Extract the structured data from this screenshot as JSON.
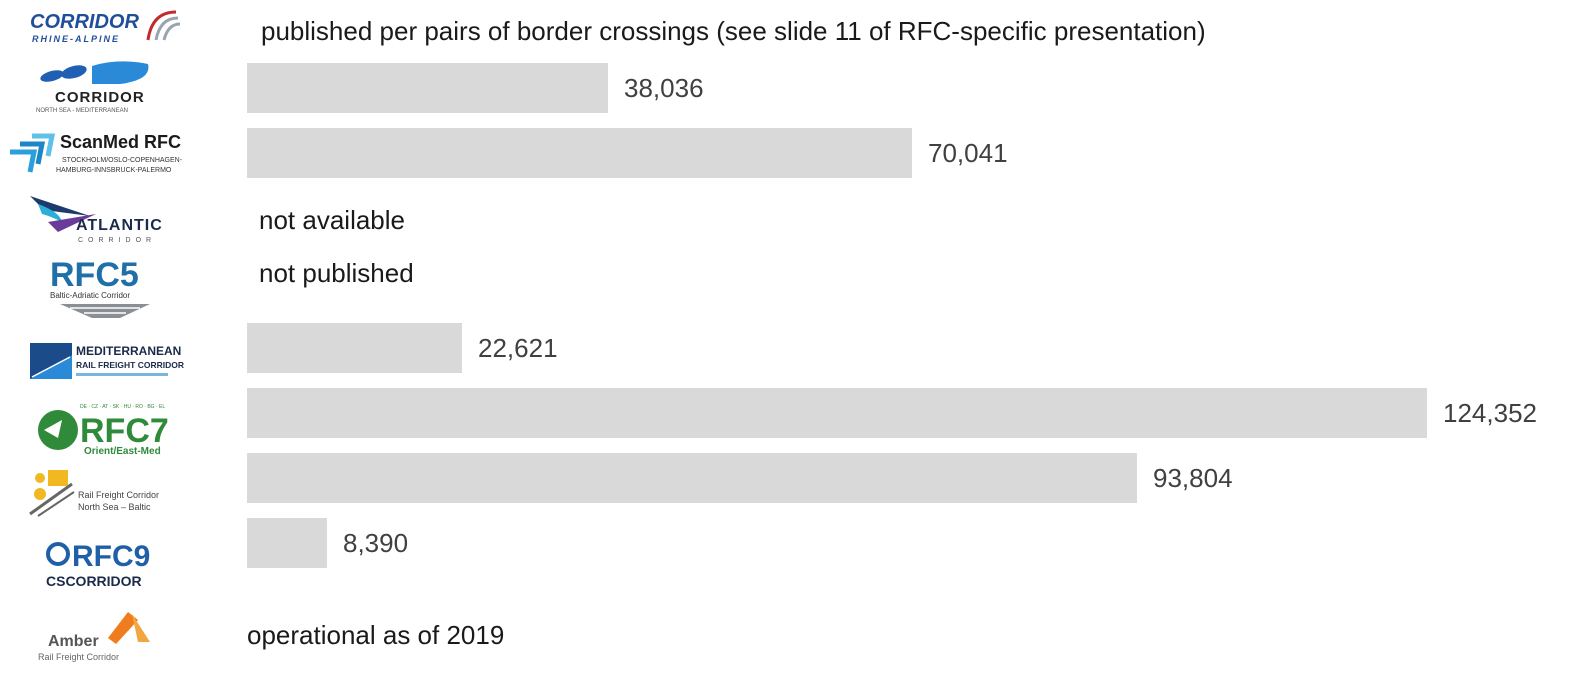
{
  "chart_data": {
    "type": "bar",
    "orientation": "horizontal",
    "categories": [
      "Rhine-Alpine",
      "North Sea-Mediterranean",
      "ScanMed",
      "Atlantic",
      "RFC5",
      "Mediterranean",
      "RFC7",
      "North Sea-Baltic",
      "RFC9",
      "Amber"
    ],
    "values": [
      null,
      38036,
      70041,
      null,
      null,
      22621,
      124352,
      93804,
      8390,
      null
    ],
    "value_labels": [
      "",
      "38,036",
      "70,041",
      "",
      "",
      "22,621",
      "124,352",
      "93,804",
      "8,390",
      ""
    ],
    "notes": [
      "published per pairs of border crossings (see slide 11 of RFC-specific presentation)",
      "",
      "",
      "not available",
      "not published",
      "",
      "",
      "",
      "",
      "operational as of 2019"
    ],
    "xlim": [
      0,
      124352
    ],
    "grid": false,
    "bar_color": "#d9d9d9"
  },
  "logos": [
    {
      "name": "rhine-alpine-logo",
      "lines": [
        "CORRIDOR",
        "RHINE-ALPINE"
      ]
    },
    {
      "name": "north-sea-mediterranean-logo",
      "lines": [
        "CORRIDOR",
        "NORTH SEA - MEDITERRANEAN"
      ]
    },
    {
      "name": "scanmed-logo",
      "lines": [
        "ScanMed RFC",
        "STOCKHOLM/OSLO-COPENHAGEN-",
        "HAMBURG-INNSBRUCK-PALERMO"
      ]
    },
    {
      "name": "atlantic-logo",
      "lines": [
        "ATLANTIC",
        "CORRIDOR"
      ]
    },
    {
      "name": "rfc5-logo",
      "lines": [
        "RFC5",
        "Baltic-Adriatic Corridor"
      ]
    },
    {
      "name": "mediterranean-logo",
      "lines": [
        "MEDITERRANEAN",
        "RAIL FREIGHT CORRIDOR"
      ]
    },
    {
      "name": "rfc7-logo",
      "lines": [
        "RFC7",
        "Orient/East-Med"
      ]
    },
    {
      "name": "north-sea-baltic-logo",
      "lines": [
        "Rail Freight Corridor",
        "North Sea – Baltic"
      ]
    },
    {
      "name": "rfc9-logo",
      "lines": [
        "RFC9",
        "CSCORRIDOR"
      ]
    },
    {
      "name": "amber-logo",
      "lines": [
        "Amber",
        "Rail Freight Corridor"
      ]
    }
  ],
  "colors": {
    "bar": "#d9d9d9",
    "value_text": "#404040",
    "note_text": "#1a1a1a"
  }
}
